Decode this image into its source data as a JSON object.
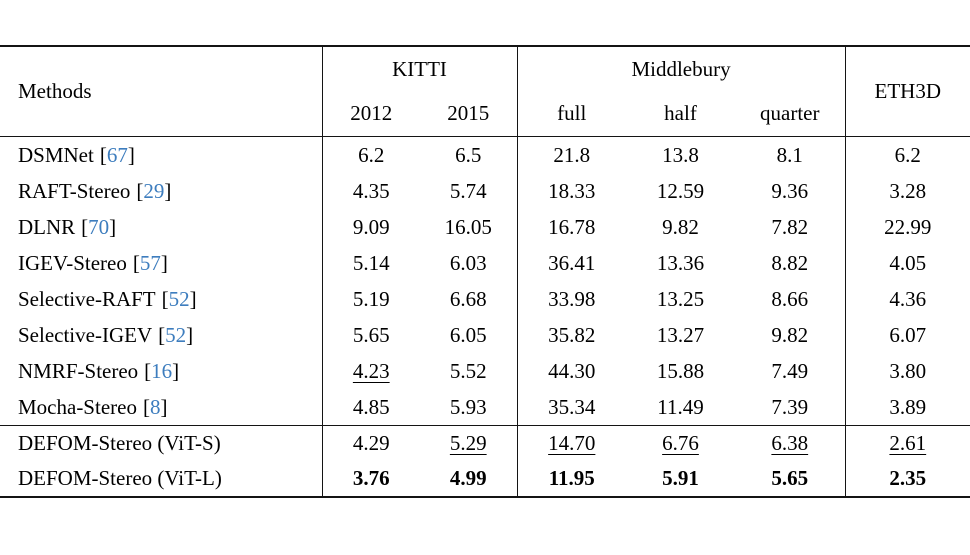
{
  "colors": {
    "citation_blue": "#3d7dbe",
    "rule_black": "#141414",
    "background": "#ffffff"
  },
  "table": {
    "header": {
      "methods": "Methods",
      "kitti": "KITTI",
      "middlebury": "Middlebury",
      "eth3d": "ETH3D",
      "subcols": [
        "2012",
        "2015",
        "full",
        "half",
        "quarter"
      ]
    },
    "cite_brackets": {
      "open": "[",
      "close": "]"
    },
    "groups": [
      {
        "rows": [
          {
            "method": "DSMNet",
            "cite": "67",
            "values": [
              "6.2",
              "6.5",
              "21.8",
              "13.8",
              "8.1",
              "6.2"
            ],
            "underline": [],
            "bold": []
          },
          {
            "method": "RAFT-Stereo",
            "cite": "29",
            "values": [
              "4.35",
              "5.74",
              "18.33",
              "12.59",
              "9.36",
              "3.28"
            ],
            "underline": [],
            "bold": []
          },
          {
            "method": "DLNR",
            "cite": "70",
            "values": [
              "9.09",
              "16.05",
              "16.78",
              "9.82",
              "7.82",
              "22.99"
            ],
            "underline": [],
            "bold": []
          },
          {
            "method": "IGEV-Stereo",
            "cite": "57",
            "values": [
              "5.14",
              "6.03",
              "36.41",
              "13.36",
              "8.82",
              "4.05"
            ],
            "underline": [],
            "bold": []
          },
          {
            "method": "Selective-RAFT",
            "cite": "52",
            "values": [
              "5.19",
              "6.68",
              "33.98",
              "13.25",
              "8.66",
              "4.36"
            ],
            "underline": [],
            "bold": []
          },
          {
            "method": "Selective-IGEV",
            "cite": "52",
            "values": [
              "5.65",
              "6.05",
              "35.82",
              "13.27",
              "9.82",
              "6.07"
            ],
            "underline": [],
            "bold": []
          },
          {
            "method": "NMRF-Stereo",
            "cite": "16",
            "values": [
              "4.23",
              "5.52",
              "44.30",
              "15.88",
              "7.49",
              "3.80"
            ],
            "underline": [
              0
            ],
            "bold": []
          },
          {
            "method": "Mocha-Stereo",
            "cite": "8",
            "values": [
              "4.85",
              "5.93",
              "35.34",
              "11.49",
              "7.39",
              "3.89"
            ],
            "underline": [],
            "bold": []
          }
        ]
      },
      {
        "rows": [
          {
            "method": "DEFOM-Stereo (ViT-S)",
            "cite": null,
            "values": [
              "4.29",
              "5.29",
              "14.70",
              "6.76",
              "6.38",
              "2.61"
            ],
            "underline": [
              1,
              2,
              3,
              4,
              5
            ],
            "bold": []
          },
          {
            "method": "DEFOM-Stereo (ViT-L)",
            "cite": null,
            "values": [
              "3.76",
              "4.99",
              "11.95",
              "5.91",
              "5.65",
              "2.35"
            ],
            "underline": [],
            "bold": [
              0,
              1,
              2,
              3,
              4,
              5
            ]
          }
        ]
      }
    ]
  }
}
